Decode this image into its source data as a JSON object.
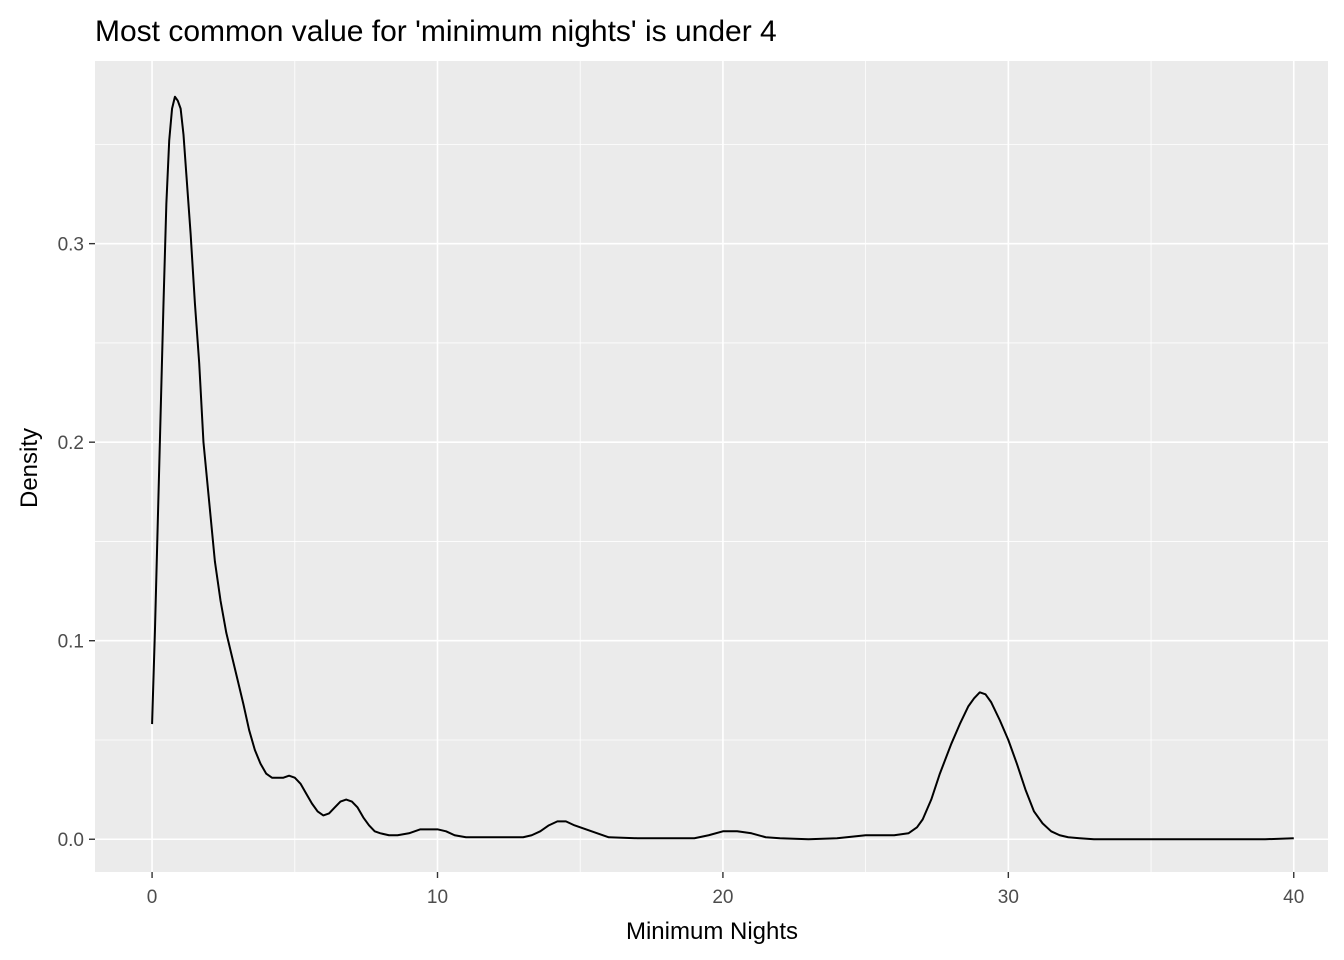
{
  "chart_data": {
    "type": "line",
    "geom": "density",
    "title": "Most common value for 'minimum nights' is under 4",
    "xlabel": "Minimum Nights",
    "ylabel": "Density",
    "xlim": [
      -2,
      41.2
    ],
    "ylim": [
      -0.0165,
      0.392
    ],
    "x_ticks": [
      0,
      10,
      20,
      30,
      40
    ],
    "y_ticks": [
      0.0,
      0.1,
      0.2,
      0.3
    ],
    "x_tick_labels": [
      "0",
      "10",
      "20",
      "30",
      "40"
    ],
    "y_tick_labels": [
      "0.0",
      "0.1",
      "0.2",
      "0.3"
    ],
    "grid": true,
    "legend": "none",
    "colors": {
      "panel": "#ebebeb",
      "grid": "#ffffff",
      "line": "#000000"
    },
    "series": [
      {
        "x": [
          0,
          0.1,
          0.2,
          0.3,
          0.4,
          0.5,
          0.6,
          0.7,
          0.8,
          0.9,
          1.0,
          1.1,
          1.2,
          1.35,
          1.5,
          1.65,
          1.8,
          2.0,
          2.2,
          2.4,
          2.6,
          2.8,
          3.0,
          3.2,
          3.4,
          3.6,
          3.8,
          4.0,
          4.2,
          4.4,
          4.6,
          4.8,
          5.0,
          5.2,
          5.4,
          5.6,
          5.8,
          6.0,
          6.2,
          6.4,
          6.6,
          6.8,
          7.0,
          7.2,
          7.4,
          7.6,
          7.8,
          8.0,
          8.3,
          8.6,
          9.0,
          9.4,
          9.8,
          10.0,
          10.3,
          10.6,
          11.0,
          11.5,
          12.0,
          12.5,
          13.0,
          13.3,
          13.6,
          13.9,
          14.2,
          14.5,
          14.8,
          15.2,
          15.6,
          16.0,
          17.0,
          18.0,
          19.0,
          19.5,
          20.0,
          20.5,
          21.0,
          21.5,
          22.0,
          23.0,
          24.0,
          25.0,
          26.0,
          26.5,
          26.8,
          27.0,
          27.3,
          27.6,
          28.0,
          28.3,
          28.6,
          28.8,
          29.0,
          29.2,
          29.4,
          29.7,
          30.0,
          30.3,
          30.6,
          30.9,
          31.2,
          31.5,
          31.8,
          32.1,
          32.5,
          33.0,
          34.0,
          35.0,
          36.0,
          37.0,
          38.0,
          39.0,
          40.0
        ],
        "y": [
          0.058,
          0.105,
          0.16,
          0.215,
          0.27,
          0.32,
          0.352,
          0.368,
          0.374,
          0.372,
          0.368,
          0.355,
          0.335,
          0.305,
          0.27,
          0.24,
          0.2,
          0.17,
          0.14,
          0.12,
          0.104,
          0.092,
          0.08,
          0.068,
          0.055,
          0.045,
          0.038,
          0.033,
          0.031,
          0.031,
          0.031,
          0.032,
          0.031,
          0.028,
          0.023,
          0.018,
          0.014,
          0.012,
          0.013,
          0.016,
          0.019,
          0.02,
          0.019,
          0.016,
          0.011,
          0.007,
          0.004,
          0.003,
          0.002,
          0.002,
          0.003,
          0.005,
          0.005,
          0.005,
          0.004,
          0.002,
          0.001,
          0.001,
          0.001,
          0.001,
          0.001,
          0.002,
          0.004,
          0.007,
          0.009,
          0.009,
          0.007,
          0.005,
          0.003,
          0.001,
          0.0005,
          0.0005,
          0.0005,
          0.002,
          0.004,
          0.004,
          0.003,
          0.001,
          0.0005,
          0.0,
          0.0005,
          0.002,
          0.002,
          0.003,
          0.006,
          0.01,
          0.02,
          0.033,
          0.048,
          0.058,
          0.067,
          0.071,
          0.074,
          0.073,
          0.069,
          0.06,
          0.05,
          0.038,
          0.025,
          0.014,
          0.008,
          0.004,
          0.002,
          0.001,
          0.0005,
          0.0,
          0.0,
          0.0,
          0.0,
          0.0,
          0.0,
          0.0,
          0.0005
        ]
      }
    ]
  }
}
